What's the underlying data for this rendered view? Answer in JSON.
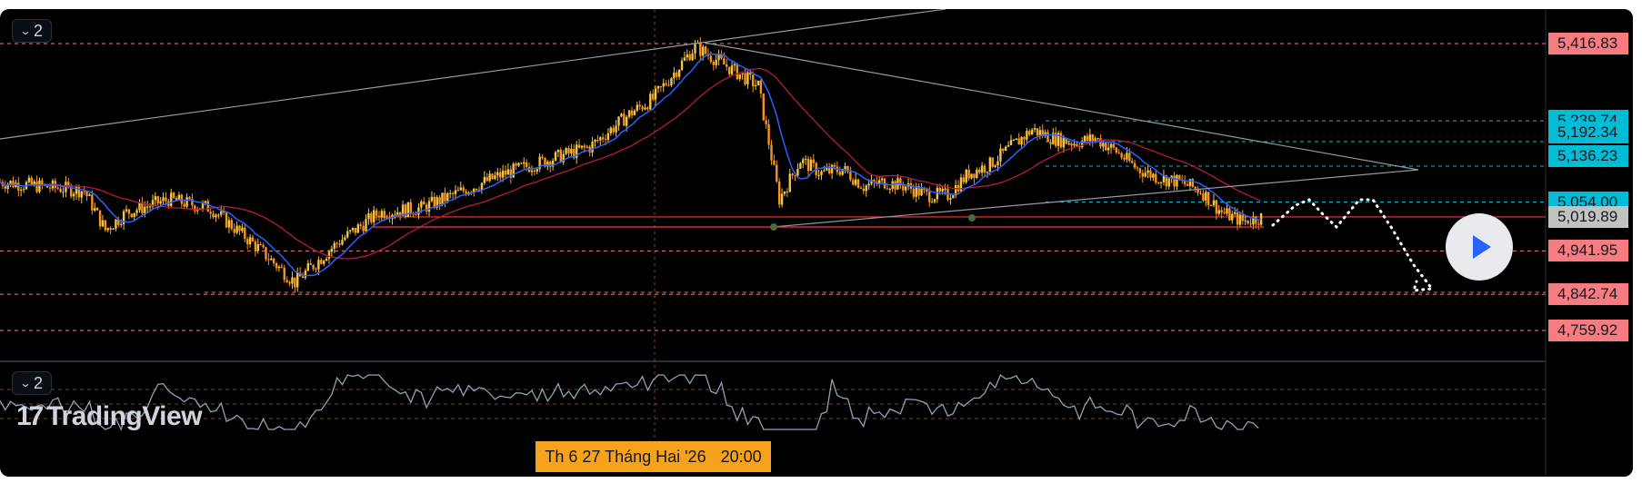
{
  "toolbar": {
    "main_pane_button": "2",
    "indicator_pane_button": "2"
  },
  "logo": {
    "mark": "17",
    "text": "TradingView"
  },
  "crosshair": {
    "date_label": "Th 6 27 Tháng Hai '26",
    "time_label": "20:00"
  },
  "price_scale": {
    "labels": [
      {
        "text": "5,416.83",
        "value": 5416.83,
        "style": "level",
        "bg": "#f77c80",
        "fg": "#131722"
      },
      {
        "text": "5,239.74",
        "value": 5239.74,
        "style": "target",
        "bg": "#00bcd4",
        "fg": "#131722"
      },
      {
        "text": "5,192.34",
        "value": 5192.34,
        "style": "target",
        "bg": "#00bcd4",
        "fg": "#131722"
      },
      {
        "text": "5,136.23",
        "value": 5136.23,
        "style": "target",
        "bg": "#00bcd4",
        "fg": "#131722"
      },
      {
        "text": "5,054.00",
        "value": 5054.0,
        "style": "target",
        "bg": "#00bcd4",
        "fg": "#131722"
      },
      {
        "text": "5,019.89",
        "value": 5019.89,
        "style": "current",
        "bg": "#c2c2c2",
        "fg": "#131722"
      },
      {
        "text": "4,941.95",
        "value": 4941.95,
        "style": "level",
        "bg": "#f77c80",
        "fg": "#131722"
      },
      {
        "text": "4,842.74",
        "value": 4842.74,
        "style": "level",
        "bg": "#f77c80",
        "fg": "#131722"
      },
      {
        "text": "4,759.92",
        "value": 4759.92,
        "style": "level",
        "bg": "#f77c80",
        "fg": "#131722"
      }
    ]
  },
  "colors": {
    "background": "#000000",
    "candle_up": "#f4c542",
    "candle_down": "#f7931e",
    "ma_fast": "#2962ff",
    "ma_slow": "#b71c3c",
    "trendline": "#9598a1",
    "support_red": "#f23645",
    "level_dash": "#f77c80",
    "target_dash": "#00bcd4",
    "projection": "#ffffff",
    "indicator_line": "#8fa3b3",
    "accent_play": "#2962ff"
  },
  "chart_data": {
    "type": "candlestick",
    "y_axis": {
      "min": 4720,
      "max": 5480
    },
    "x_axis": {
      "bars": 120
    },
    "series": [
      {
        "name": "",
        "kind": "close_path",
        "x": [
          0,
          4,
          8,
          10,
          12,
          16,
          20,
          24,
          28,
          32,
          36,
          40,
          44,
          48,
          52,
          56,
          60,
          62,
          64,
          66,
          68,
          70,
          72,
          74,
          76,
          78,
          80,
          82,
          84,
          86,
          88,
          90,
          92,
          94,
          96,
          98,
          100,
          102,
          104,
          106,
          108,
          110,
          112,
          114,
          116,
          118,
          120
        ],
        "values": [
          5100,
          5090,
          5080,
          4990,
          5030,
          5060,
          5040,
          4960,
          4870,
          4960,
          5030,
          5040,
          5080,
          5120,
          5150,
          5180,
          5260,
          5290,
          5350,
          5410,
          5380,
          5350,
          5320,
          5060,
          5150,
          5120,
          5130,
          5090,
          5100,
          5090,
          5070,
          5070,
          5120,
          5140,
          5180,
          5220,
          5200,
          5190,
          5200,
          5170,
          5130,
          5110,
          5100,
          5080,
          5030,
          5010,
          5020
        ]
      }
    ],
    "levels": [
      5416.83,
      5239.74,
      5192.34,
      5136.23,
      5054.0,
      5019.89,
      4941.95,
      4842.74,
      4759.92
    ],
    "indicator": {
      "name": "",
      "range": [
        0,
        100
      ],
      "ref_lines": [
        70,
        50,
        30
      ]
    }
  }
}
